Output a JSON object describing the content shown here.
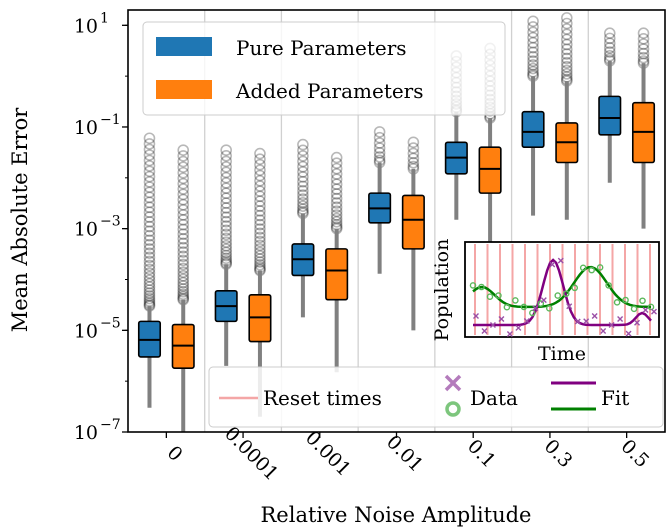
{
  "chart_data": {
    "type": "box",
    "xlabel": "Relative Noise Amplitude",
    "ylabel": "Mean Absolute Error",
    "yscale": "log",
    "ylim": [
      1e-07,
      20
    ],
    "categories": [
      "0",
      "0.0001",
      "0.001",
      "0.01",
      "0.1",
      "0.3",
      "0.5"
    ],
    "yticks": [
      {
        "value": 10,
        "label": "10",
        "exp": "1"
      },
      {
        "value": 0.1,
        "label": "10",
        "exp": "−1"
      },
      {
        "value": 0.001,
        "label": "10",
        "exp": "−3"
      },
      {
        "value": 1e-05,
        "label": "10",
        "exp": "−5"
      },
      {
        "value": 1e-07,
        "label": "10",
        "exp": "−7"
      }
    ],
    "series": [
      {
        "name": "Pure Parameters",
        "color": "#1f77b4",
        "boxes": [
          {
            "q1": 3e-06,
            "median": 6.5e-06,
            "q3": 1.5e-05,
            "whislo": 3e-07,
            "whishi": 3e-05,
            "flier_max": 0.06
          },
          {
            "q1": 1.5e-05,
            "median": 3e-05,
            "q3": 6e-05,
            "whislo": 2e-06,
            "whishi": 0.0002,
            "flier_max": 0.035
          },
          {
            "q1": 0.00012,
            "median": 0.00025,
            "q3": 0.0005,
            "whislo": 1.8e-05,
            "whishi": 0.002,
            "flier_max": 0.045
          },
          {
            "q1": 0.0013,
            "median": 0.0025,
            "q3": 0.005,
            "whislo": 0.00013,
            "whishi": 0.02,
            "flier_max": 0.08
          },
          {
            "q1": 0.012,
            "median": 0.025,
            "q3": 0.05,
            "whislo": 0.0015,
            "whishi": 0.2,
            "flier_max": 2.5
          },
          {
            "q1": 0.04,
            "median": 0.08,
            "q3": 0.2,
            "whislo": 0.0018,
            "whishi": 1.0,
            "flier_max": 12
          },
          {
            "q1": 0.07,
            "median": 0.15,
            "q3": 0.4,
            "whislo": 0.008,
            "whishi": 2.0,
            "flier_max": 7
          }
        ]
      },
      {
        "name": "Added Parameters",
        "color": "#ff7f0e",
        "boxes": [
          {
            "q1": 1.8e-06,
            "median": 5e-06,
            "q3": 1.3e-05,
            "whislo": 1e-07,
            "whishi": 4e-05,
            "flier_max": 0.035
          },
          {
            "q1": 6e-06,
            "median": 1.8e-05,
            "q3": 5e-05,
            "whislo": 2e-07,
            "whishi": 0.00015,
            "flier_max": 0.03
          },
          {
            "q1": 4e-05,
            "median": 0.00015,
            "q3": 0.0004,
            "whislo": 1.5e-06,
            "whishi": 0.001,
            "flier_max": 0.025
          },
          {
            "q1": 0.0004,
            "median": 0.0015,
            "q3": 0.0045,
            "whislo": 1e-05,
            "whishi": 0.015,
            "flier_max": 0.05
          },
          {
            "q1": 0.005,
            "median": 0.015,
            "q3": 0.04,
            "whislo": 0.0005,
            "whishi": 0.15,
            "flier_max": 3.5
          },
          {
            "q1": 0.02,
            "median": 0.05,
            "q3": 0.12,
            "whislo": 0.0015,
            "whishi": 0.8,
            "flier_max": 14
          },
          {
            "q1": 0.02,
            "median": 0.08,
            "q3": 0.3,
            "whislo": 0.001,
            "whishi": 1.8,
            "flier_max": 7
          }
        ]
      }
    ],
    "legend": {
      "placement": "upper-left",
      "entries": [
        "Pure Parameters",
        "Added Parameters"
      ]
    },
    "inset": {
      "xlabel": "Time",
      "ylabel": "Population",
      "reset_color": "#f4a6a6",
      "data_color": "#9b4fa6",
      "data_color_2": "#5cb85c",
      "fit_color": "#800080",
      "fit_color_2": "#008000",
      "legend": [
        {
          "label": "Reset times",
          "kind": "line",
          "color": "#f4a6a6"
        },
        {
          "label": "Data",
          "kind": "markers"
        },
        {
          "label": "Fit",
          "kind": "lines"
        }
      ]
    }
  }
}
